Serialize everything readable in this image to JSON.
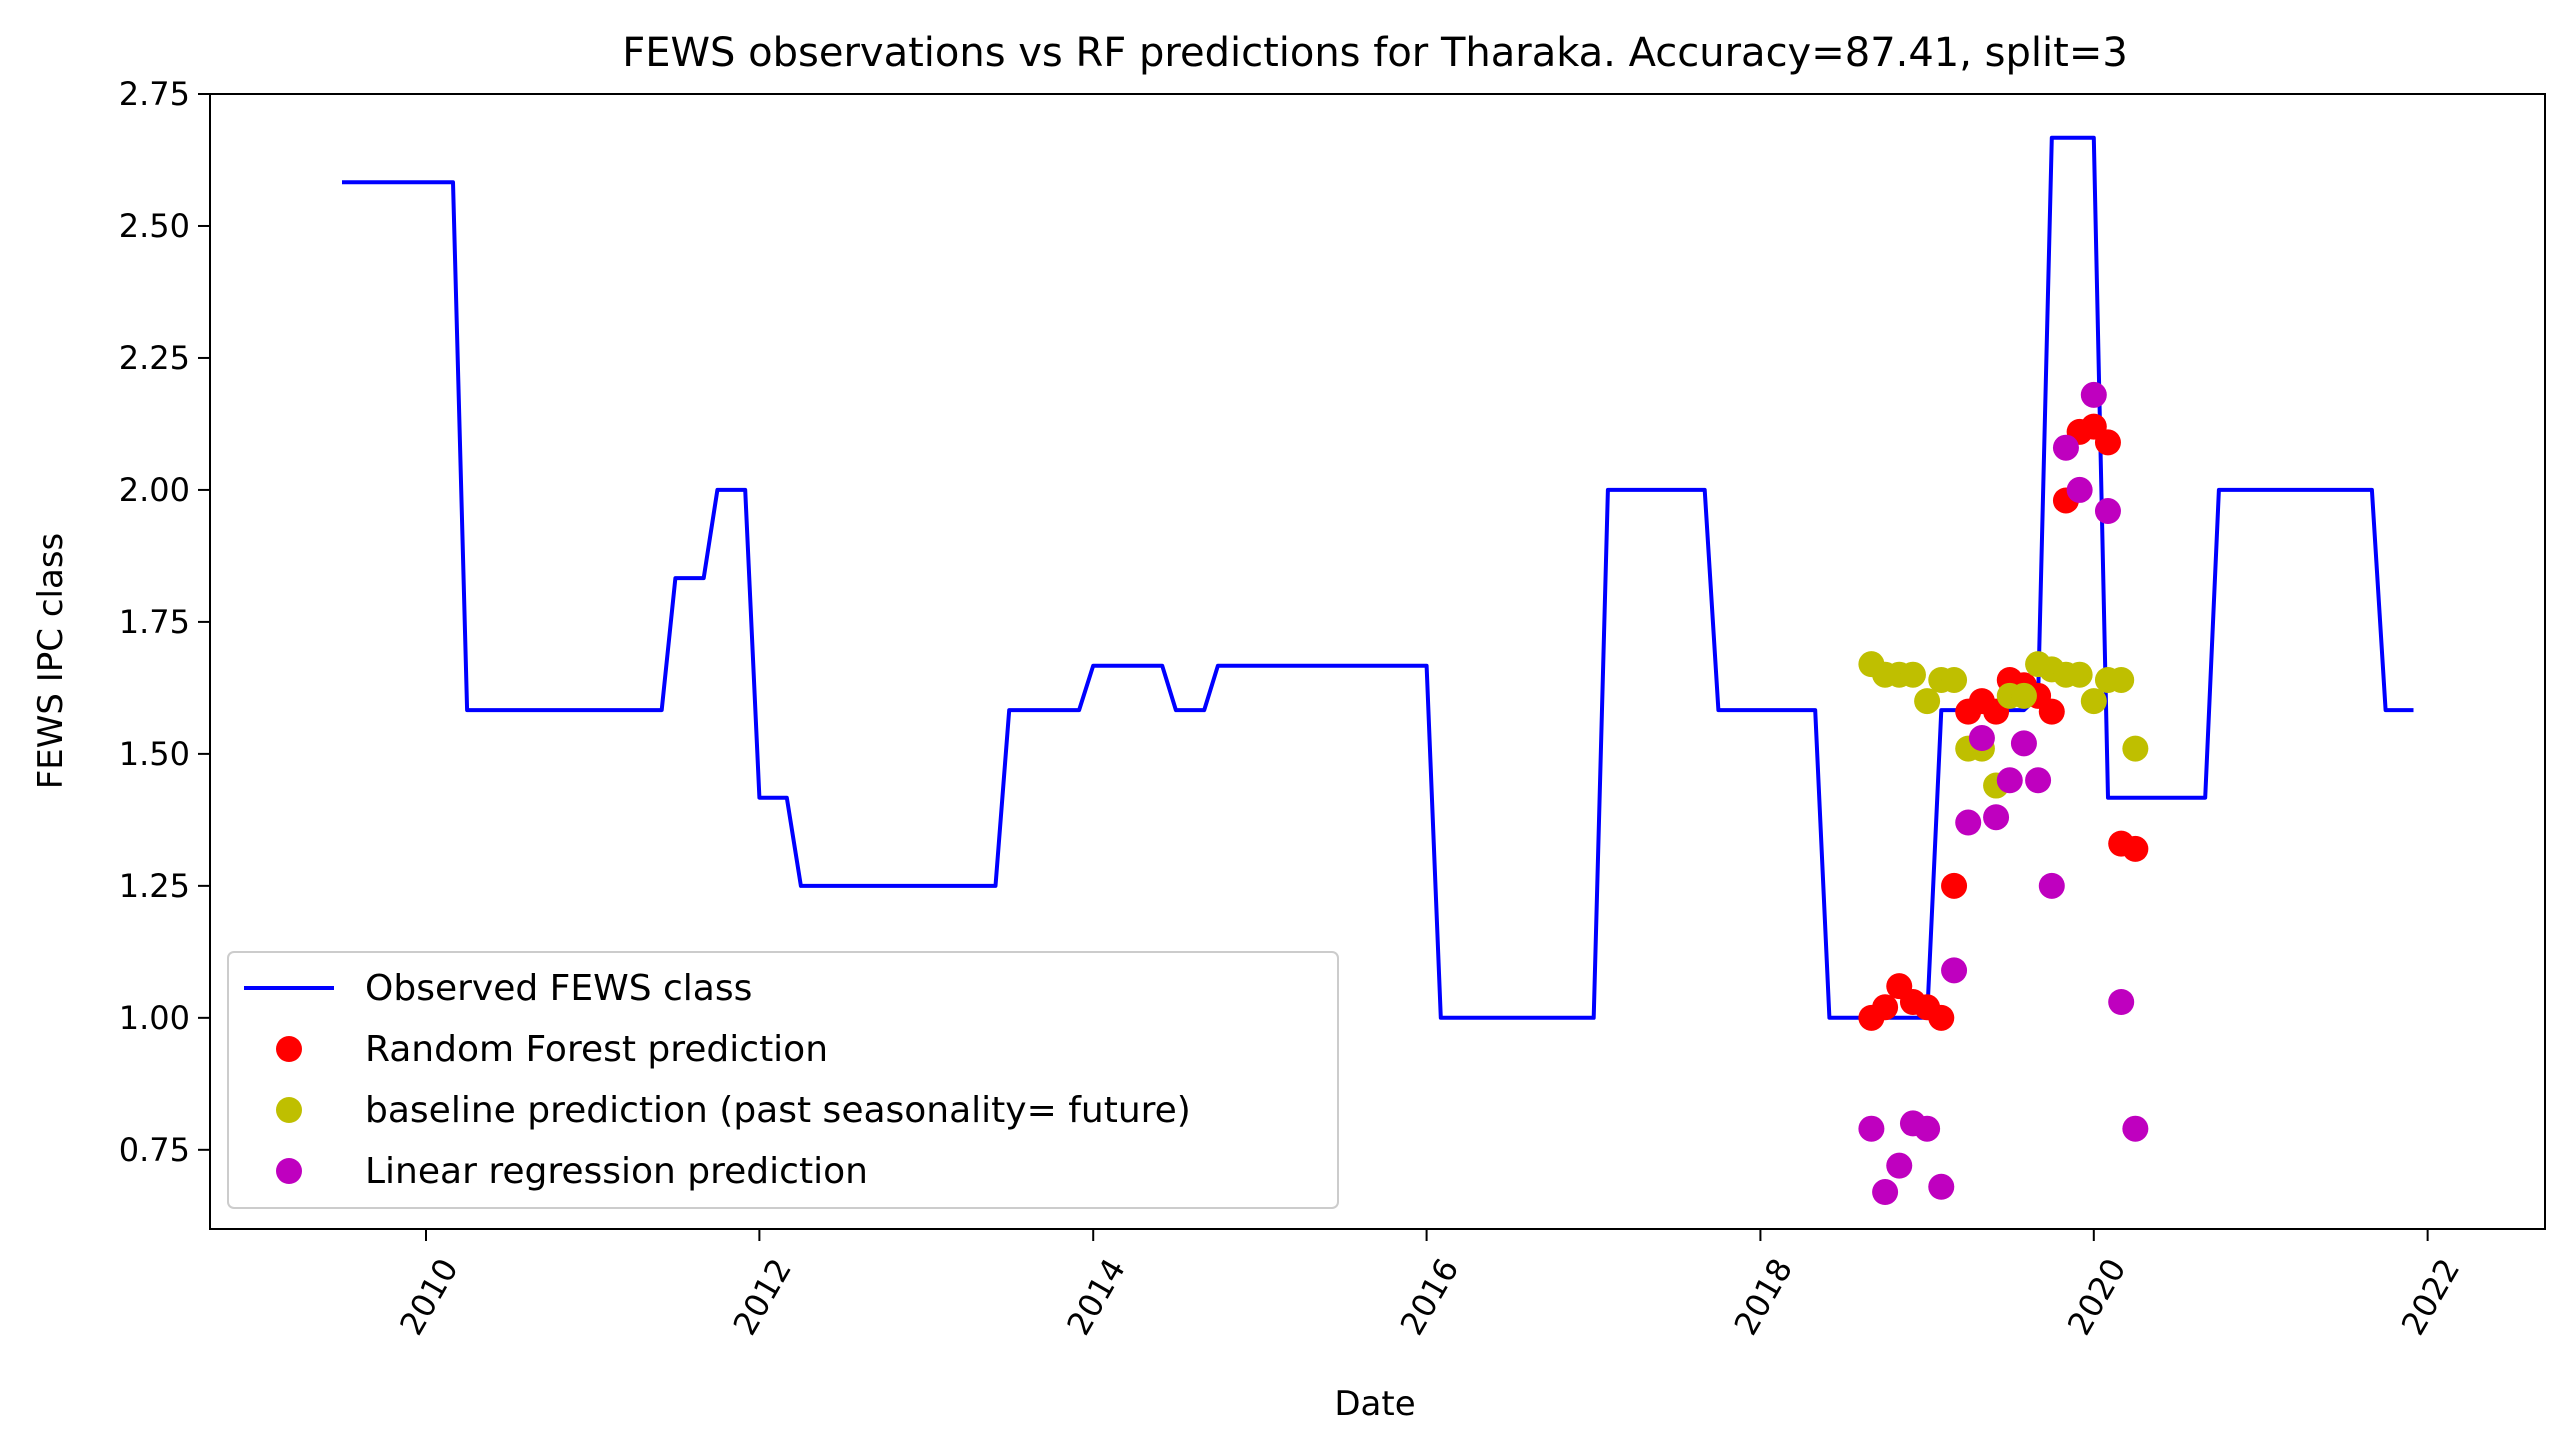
{
  "chart_data": {
    "type": "line",
    "title": "FEWS observations vs RF predictions for Tharaka. Accuracy=87.41, split=3",
    "xlabel": "Date",
    "ylabel": "FEWS IPC class",
    "xlim": [
      "2008-09-15",
      "2022-09-15"
    ],
    "ylim": [
      0.6,
      2.75
    ],
    "x_ticks": [
      "2010-01-01",
      "2012-01-01",
      "2014-01-01",
      "2016-01-01",
      "2018-01-01",
      "2020-01-01",
      "2022-01-01"
    ],
    "x_tick_labels": [
      "2010",
      "2012",
      "2014",
      "2016",
      "2018",
      "2020",
      "2022"
    ],
    "y_ticks": [
      0.75,
      1.0,
      1.25,
      1.5,
      1.75,
      2.0,
      2.25,
      2.5,
      2.75
    ],
    "y_tick_labels": [
      "0.75",
      "1.00",
      "1.25",
      "1.50",
      "1.75",
      "2.00",
      "2.25",
      "2.50",
      "2.75"
    ],
    "grid": false,
    "legend_position": "lower-left",
    "series": [
      {
        "name": "Observed FEWS class",
        "kind": "line",
        "color": "#0000ff",
        "points": [
          [
            "2009-07-01",
            2.583
          ],
          [
            "2010-03-01",
            2.583
          ],
          [
            "2010-04-01",
            1.583
          ],
          [
            "2011-06-01",
            1.583
          ],
          [
            "2011-07-01",
            1.833
          ],
          [
            "2011-09-01",
            1.833
          ],
          [
            "2011-10-01",
            2.0
          ],
          [
            "2011-12-01",
            2.0
          ],
          [
            "2012-01-01",
            1.417
          ],
          [
            "2012-03-01",
            1.417
          ],
          [
            "2012-04-01",
            1.25
          ],
          [
            "2013-06-01",
            1.25
          ],
          [
            "2013-07-01",
            1.583
          ],
          [
            "2013-12-01",
            1.583
          ],
          [
            "2014-01-01",
            1.667
          ],
          [
            "2014-06-01",
            1.667
          ],
          [
            "2014-07-01",
            1.583
          ],
          [
            "2014-09-01",
            1.583
          ],
          [
            "2014-10-01",
            1.667
          ],
          [
            "2016-01-01",
            1.667
          ],
          [
            "2016-02-01",
            1.0
          ],
          [
            "2017-01-01",
            1.0
          ],
          [
            "2017-02-01",
            2.0
          ],
          [
            "2017-09-01",
            2.0
          ],
          [
            "2017-10-01",
            1.583
          ],
          [
            "2018-05-01",
            1.583
          ],
          [
            "2018-06-01",
            1.0
          ],
          [
            "2019-01-01",
            1.0
          ],
          [
            "2019-02-01",
            1.583
          ],
          [
            "2019-08-01",
            1.583
          ],
          [
            "2019-09-01",
            1.608
          ],
          [
            "2019-10-01",
            2.667
          ],
          [
            "2020-01-01",
            2.667
          ],
          [
            "2020-02-01",
            1.417
          ],
          [
            "2020-09-01",
            1.417
          ],
          [
            "2020-10-01",
            2.0
          ],
          [
            "2021-09-01",
            2.0
          ],
          [
            "2021-10-01",
            1.583
          ],
          [
            "2021-12-01",
            1.583
          ]
        ]
      },
      {
        "name": "Random Forest prediction",
        "kind": "scatter",
        "color": "#ff0000",
        "points": [
          [
            "2018-09-01",
            1.0
          ],
          [
            "2018-10-01",
            1.02
          ],
          [
            "2018-11-01",
            1.06
          ],
          [
            "2018-12-01",
            1.03
          ],
          [
            "2019-01-01",
            1.02
          ],
          [
            "2019-02-01",
            1.0
          ],
          [
            "2019-03-01",
            1.25
          ],
          [
            "2019-04-01",
            1.58
          ],
          [
            "2019-05-01",
            1.6
          ],
          [
            "2019-06-01",
            1.58
          ],
          [
            "2019-07-01",
            1.64
          ],
          [
            "2019-08-01",
            1.63
          ],
          [
            "2019-09-01",
            1.61
          ],
          [
            "2019-10-01",
            1.58
          ],
          [
            "2019-11-01",
            1.98
          ],
          [
            "2019-12-01",
            2.11
          ],
          [
            "2020-01-01",
            2.12
          ],
          [
            "2020-02-01",
            2.09
          ],
          [
            "2020-03-01",
            1.33
          ],
          [
            "2020-04-01",
            1.32
          ]
        ]
      },
      {
        "name": "baseline prediction (past seasonality= future)",
        "kind": "scatter",
        "color": "#bfbf00",
        "points": [
          [
            "2018-09-01",
            1.67
          ],
          [
            "2018-10-01",
            1.65
          ],
          [
            "2018-11-01",
            1.65
          ],
          [
            "2018-12-01",
            1.65
          ],
          [
            "2019-01-01",
            1.6
          ],
          [
            "2019-02-01",
            1.64
          ],
          [
            "2019-03-01",
            1.64
          ],
          [
            "2019-04-01",
            1.51
          ],
          [
            "2019-05-01",
            1.51
          ],
          [
            "2019-06-01",
            1.44
          ],
          [
            "2019-07-01",
            1.61
          ],
          [
            "2019-08-01",
            1.61
          ],
          [
            "2019-09-01",
            1.67
          ],
          [
            "2019-10-01",
            1.66
          ],
          [
            "2019-11-01",
            1.65
          ],
          [
            "2019-12-01",
            1.65
          ],
          [
            "2020-01-01",
            1.6
          ],
          [
            "2020-02-01",
            1.64
          ],
          [
            "2020-03-01",
            1.64
          ],
          [
            "2020-04-01",
            1.51
          ]
        ]
      },
      {
        "name": "Linear regression prediction",
        "kind": "scatter",
        "color": "#bf00bf",
        "points": [
          [
            "2018-09-01",
            0.79
          ],
          [
            "2018-10-01",
            0.67
          ],
          [
            "2018-11-01",
            0.72
          ],
          [
            "2018-12-01",
            0.8
          ],
          [
            "2019-01-01",
            0.79
          ],
          [
            "2019-02-01",
            0.68
          ],
          [
            "2019-03-01",
            1.09
          ],
          [
            "2019-04-01",
            1.37
          ],
          [
            "2019-05-01",
            1.53
          ],
          [
            "2019-06-01",
            1.38
          ],
          [
            "2019-07-01",
            1.45
          ],
          [
            "2019-08-01",
            1.52
          ],
          [
            "2019-09-01",
            1.45
          ],
          [
            "2019-10-01",
            1.25
          ],
          [
            "2019-11-01",
            2.08
          ],
          [
            "2019-12-01",
            2.0
          ],
          [
            "2020-01-01",
            2.18
          ],
          [
            "2020-02-01",
            1.96
          ],
          [
            "2020-03-01",
            1.03
          ],
          [
            "2020-04-01",
            0.79
          ]
        ]
      }
    ]
  }
}
